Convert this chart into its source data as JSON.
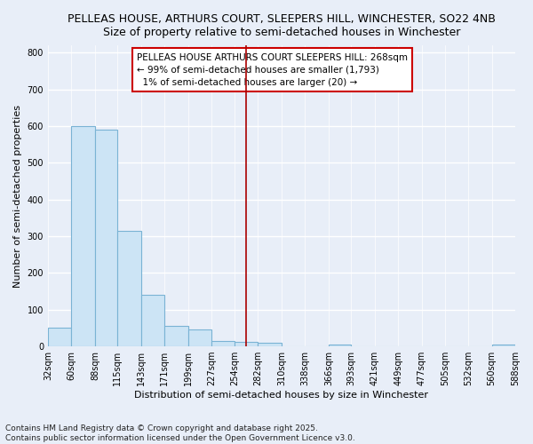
{
  "title_line1": "PELLEAS HOUSE, ARTHURS COURT, SLEEPERS HILL, WINCHESTER, SO22 4NB",
  "title_line2": "Size of property relative to semi-detached houses in Winchester",
  "xlabel": "Distribution of semi-detached houses by size in Winchester",
  "ylabel": "Number of semi-detached properties",
  "bar_color": "#cce4f5",
  "bar_edge_color": "#7ab3d4",
  "bg_color": "#e8eef8",
  "grid_color": "#ffffff",
  "vline_color": "#aa0000",
  "vline_x": 268,
  "annotation_line1": "PELLEAS HOUSE ARTHURS COURT SLEEPERS HILL: 268sqm",
  "annotation_line2": "← 99% of semi-detached houses are smaller (1,793)",
  "annotation_line3": "  1% of semi-detached houses are larger (20) →",
  "footnote1": "Contains HM Land Registry data © Crown copyright and database right 2025.",
  "footnote2": "Contains public sector information licensed under the Open Government Licence v3.0.",
  "bin_edges": [
    32,
    60,
    88,
    115,
    143,
    171,
    199,
    227,
    254,
    282,
    310,
    338,
    366,
    393,
    421,
    449,
    477,
    505,
    532,
    560,
    588
  ],
  "bar_heights": [
    50,
    600,
    590,
    315,
    140,
    55,
    45,
    15,
    12,
    10,
    0,
    0,
    5,
    0,
    0,
    0,
    0,
    0,
    0,
    5
  ],
  "ylim": [
    0,
    820
  ],
  "yticks": [
    0,
    100,
    200,
    300,
    400,
    500,
    600,
    700,
    800
  ],
  "title_fontsize": 9,
  "subtitle_fontsize": 8.5,
  "axis_label_fontsize": 8,
  "tick_fontsize": 7,
  "annot_fontsize": 7.5,
  "footnote_fontsize": 6.5
}
